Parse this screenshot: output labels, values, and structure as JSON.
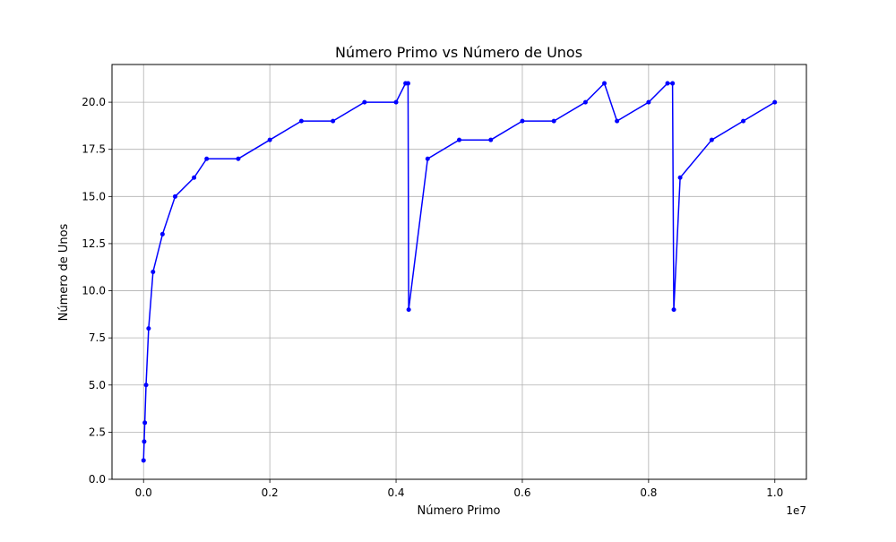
{
  "chart_data": {
    "type": "line",
    "title": "Número Primo vs Número de Unos",
    "xlabel": "Número Primo",
    "ylabel": "Número de Unos",
    "x_offset_label": "1e7",
    "xlim": [
      -0.05,
      1.05
    ],
    "ylim": [
      0,
      22
    ],
    "x_ticks": [
      0.0,
      0.2,
      0.4,
      0.6,
      0.8,
      1.0
    ],
    "x_tick_labels": [
      "0.0",
      "0.2",
      "0.4",
      "0.6",
      "0.8",
      "1.0"
    ],
    "y_ticks": [
      0,
      2.5,
      5,
      7.5,
      10,
      12.5,
      15,
      17.5,
      20
    ],
    "y_tick_labels": [
      "0.0",
      "2.5",
      "5.0",
      "7.5",
      "10.0",
      "12.5",
      "15.0",
      "17.5",
      "20.0"
    ],
    "grid": true,
    "marker": "circle",
    "series": [
      {
        "color": "#0000ff",
        "x": [
          0.0,
          0.001,
          0.002,
          0.004,
          0.008,
          0.015,
          0.03,
          0.05,
          0.08,
          0.1,
          0.15,
          0.2,
          0.25,
          0.3,
          0.35,
          0.4,
          0.415,
          0.419,
          0.42,
          0.45,
          0.5,
          0.55,
          0.6,
          0.65,
          0.7,
          0.73,
          0.75,
          0.8,
          0.83,
          0.838,
          0.84,
          0.85,
          0.9,
          0.95,
          0.9999
        ],
        "y": [
          1,
          2,
          3,
          5,
          8,
          11,
          13,
          15,
          16,
          17,
          17,
          18,
          19,
          19,
          20,
          20,
          21,
          21,
          9,
          17,
          18,
          18,
          19,
          19,
          20,
          21,
          19,
          20,
          21,
          21,
          9,
          16,
          18,
          19,
          20
        ]
      }
    ]
  }
}
